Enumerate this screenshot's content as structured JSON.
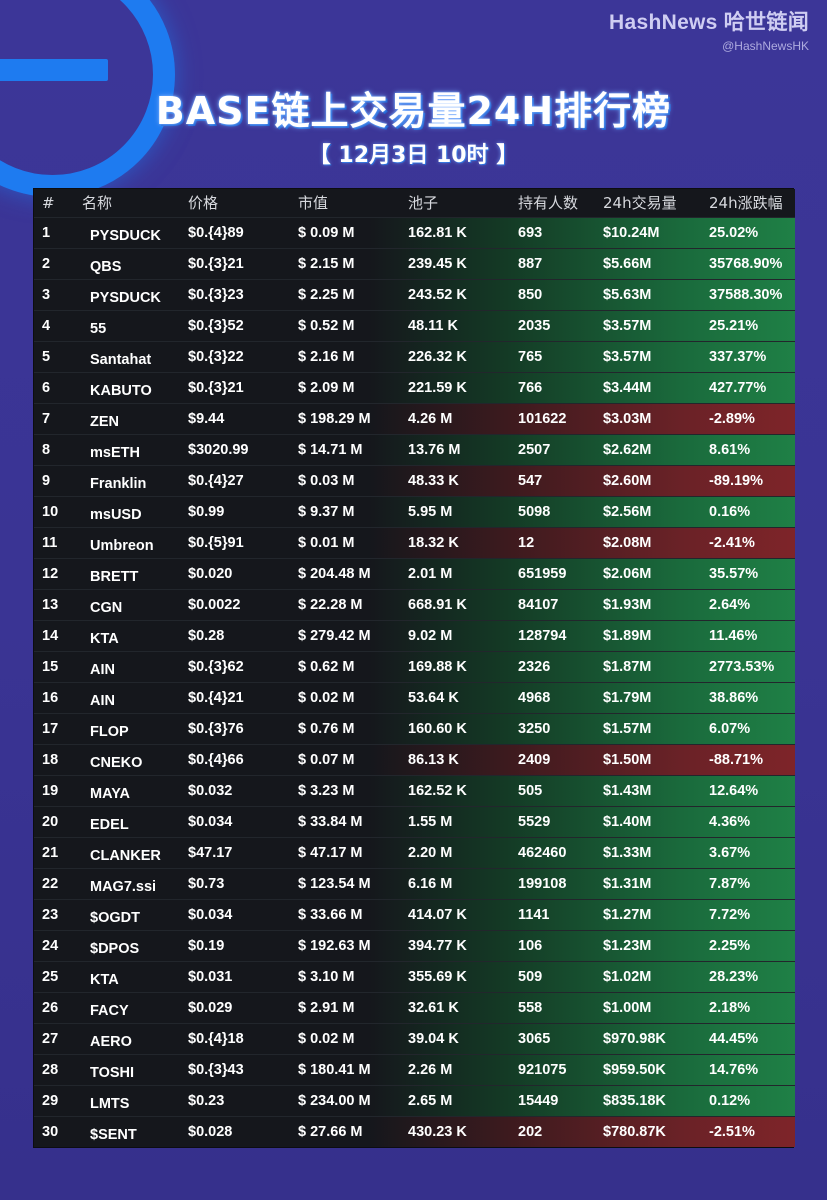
{
  "header": {
    "brand_name": "HashNews 哈世链闻",
    "brand_handle": "@HashNewsHK",
    "title": "BASE链上交易量24H排行榜",
    "date": "【 12月3日 10时 】"
  },
  "colors": {
    "background": "#3b3597",
    "logo_blue": "#1e7bf0",
    "positive_green": "#1f8046",
    "negative_red": "#7e2429",
    "table_dark": "#15171c"
  },
  "table": {
    "columns": [
      "#",
      "名称",
      "价格",
      "市值",
      "池子",
      "持有人数",
      "24h交易量",
      "24h涨跌幅"
    ],
    "rows": [
      {
        "rank": "1",
        "name": "PYSDUCK",
        "price": "$0.{4}89",
        "mcap": "$ 0.09 M",
        "pool": "162.81 K",
        "holders": "693",
        "volume": "$10.24M",
        "change": "25.02%",
        "trend": "up"
      },
      {
        "rank": "2",
        "name": "QBS",
        "price": "$0.{3}21",
        "mcap": "$ 2.15 M",
        "pool": "239.45 K",
        "holders": "887",
        "volume": "$5.66M",
        "change": "35768.90%",
        "trend": "up"
      },
      {
        "rank": "3",
        "name": "PYSDUCK",
        "price": "$0.{3}23",
        "mcap": "$ 2.25 M",
        "pool": "243.52 K",
        "holders": "850",
        "volume": "$5.63M",
        "change": "37588.30%",
        "trend": "up"
      },
      {
        "rank": "4",
        "name": "55",
        "price": "$0.{3}52",
        "mcap": "$ 0.52 M",
        "pool": "48.11 K",
        "holders": "2035",
        "volume": "$3.57M",
        "change": "25.21%",
        "trend": "up"
      },
      {
        "rank": "5",
        "name": "Santahat",
        "price": "$0.{3}22",
        "mcap": "$ 2.16 M",
        "pool": "226.32 K",
        "holders": "765",
        "volume": "$3.57M",
        "change": "337.37%",
        "trend": "up"
      },
      {
        "rank": "6",
        "name": "KABUTO",
        "price": "$0.{3}21",
        "mcap": "$ 2.09 M",
        "pool": "221.59 K",
        "holders": "766",
        "volume": "$3.44M",
        "change": "427.77%",
        "trend": "up"
      },
      {
        "rank": "7",
        "name": "ZEN",
        "price": "$9.44",
        "mcap": "$ 198.29 M",
        "pool": "4.26 M",
        "holders": "101622",
        "volume": "$3.03M",
        "change": "-2.89%",
        "trend": "down"
      },
      {
        "rank": "8",
        "name": "msETH",
        "price": "$3020.99",
        "mcap": "$ 14.71 M",
        "pool": "13.76 M",
        "holders": "2507",
        "volume": "$2.62M",
        "change": "8.61%",
        "trend": "up"
      },
      {
        "rank": "9",
        "name": "Franklin",
        "price": "$0.{4}27",
        "mcap": "$ 0.03 M",
        "pool": "48.33 K",
        "holders": "547",
        "volume": "$2.60M",
        "change": "-89.19%",
        "trend": "down"
      },
      {
        "rank": "10",
        "name": "msUSD",
        "price": "$0.99",
        "mcap": "$ 9.37 M",
        "pool": "5.95 M",
        "holders": "5098",
        "volume": "$2.56M",
        "change": "0.16%",
        "trend": "up"
      },
      {
        "rank": "11",
        "name": "Umbreon",
        "price": "$0.{5}91",
        "mcap": "$ 0.01 M",
        "pool": "18.32 K",
        "holders": "12",
        "volume": "$2.08M",
        "change": "-2.41%",
        "trend": "down"
      },
      {
        "rank": "12",
        "name": "BRETT",
        "price": "$0.020",
        "mcap": "$ 204.48 M",
        "pool": "2.01 M",
        "holders": "651959",
        "volume": "$2.06M",
        "change": "35.57%",
        "trend": "up"
      },
      {
        "rank": "13",
        "name": "CGN",
        "price": "$0.0022",
        "mcap": "$ 22.28 M",
        "pool": "668.91 K",
        "holders": "84107",
        "volume": "$1.93M",
        "change": "2.64%",
        "trend": "up"
      },
      {
        "rank": "14",
        "name": "KTA",
        "price": "$0.28",
        "mcap": "$ 279.42 M",
        "pool": "9.02 M",
        "holders": "128794",
        "volume": "$1.89M",
        "change": "11.46%",
        "trend": "up"
      },
      {
        "rank": "15",
        "name": "AIN",
        "price": "$0.{3}62",
        "mcap": "$ 0.62 M",
        "pool": "169.88 K",
        "holders": "2326",
        "volume": "$1.87M",
        "change": "2773.53%",
        "trend": "up"
      },
      {
        "rank": "16",
        "name": "AIN",
        "price": "$0.{4}21",
        "mcap": "$ 0.02 M",
        "pool": "53.64 K",
        "holders": "4968",
        "volume": "$1.79M",
        "change": "38.86%",
        "trend": "up"
      },
      {
        "rank": "17",
        "name": "FLOP",
        "price": "$0.{3}76",
        "mcap": "$ 0.76 M",
        "pool": "160.60 K",
        "holders": "3250",
        "volume": "$1.57M",
        "change": "6.07%",
        "trend": "up"
      },
      {
        "rank": "18",
        "name": "CNEKO",
        "price": "$0.{4}66",
        "mcap": "$ 0.07 M",
        "pool": "86.13 K",
        "holders": "2409",
        "volume": "$1.50M",
        "change": "-88.71%",
        "trend": "down"
      },
      {
        "rank": "19",
        "name": "MAYA",
        "price": "$0.032",
        "mcap": "$ 3.23 M",
        "pool": "162.52 K",
        "holders": "505",
        "volume": "$1.43M",
        "change": "12.64%",
        "trend": "up"
      },
      {
        "rank": "20",
        "name": "EDEL",
        "price": "$0.034",
        "mcap": "$ 33.84 M",
        "pool": "1.55 M",
        "holders": "5529",
        "volume": "$1.40M",
        "change": "4.36%",
        "trend": "up"
      },
      {
        "rank": "21",
        "name": "CLANKER",
        "price": "$47.17",
        "mcap": "$ 47.17 M",
        "pool": "2.20 M",
        "holders": "462460",
        "volume": "$1.33M",
        "change": "3.67%",
        "trend": "up"
      },
      {
        "rank": "22",
        "name": "MAG7.ssi",
        "price": "$0.73",
        "mcap": "$ 123.54 M",
        "pool": "6.16 M",
        "holders": "199108",
        "volume": "$1.31M",
        "change": "7.87%",
        "trend": "up"
      },
      {
        "rank": "23",
        "name": "$OGDT",
        "price": "$0.034",
        "mcap": "$ 33.66 M",
        "pool": "414.07 K",
        "holders": "1141",
        "volume": "$1.27M",
        "change": "7.72%",
        "trend": "up"
      },
      {
        "rank": "24",
        "name": "$DPOS",
        "price": "$0.19",
        "mcap": "$ 192.63 M",
        "pool": "394.77 K",
        "holders": "106",
        "volume": "$1.23M",
        "change": "2.25%",
        "trend": "up"
      },
      {
        "rank": "25",
        "name": "KTA",
        "price": "$0.031",
        "mcap": "$ 3.10 M",
        "pool": "355.69 K",
        "holders": "509",
        "volume": "$1.02M",
        "change": "28.23%",
        "trend": "up"
      },
      {
        "rank": "26",
        "name": "FACY",
        "price": "$0.029",
        "mcap": "$ 2.91 M",
        "pool": "32.61 K",
        "holders": "558",
        "volume": "$1.00M",
        "change": "2.18%",
        "trend": "up"
      },
      {
        "rank": "27",
        "name": "AERO",
        "price": "$0.{4}18",
        "mcap": "$ 0.02 M",
        "pool": "39.04 K",
        "holders": "3065",
        "volume": "$970.98K",
        "change": "44.45%",
        "trend": "up"
      },
      {
        "rank": "28",
        "name": "TOSHI",
        "price": "$0.{3}43",
        "mcap": "$ 180.41 M",
        "pool": "2.26 M",
        "holders": "921075",
        "volume": "$959.50K",
        "change": "14.76%",
        "trend": "up"
      },
      {
        "rank": "29",
        "name": "LMTS",
        "price": "$0.23",
        "mcap": "$ 234.00 M",
        "pool": "2.65 M",
        "holders": "15449",
        "volume": "$835.18K",
        "change": "0.12%",
        "trend": "up"
      },
      {
        "rank": "30",
        "name": "$SENT",
        "price": "$0.028",
        "mcap": "$ 27.66 M",
        "pool": "430.23 K",
        "holders": "202",
        "volume": "$780.87K",
        "change": "-2.51%",
        "trend": "down"
      }
    ]
  }
}
